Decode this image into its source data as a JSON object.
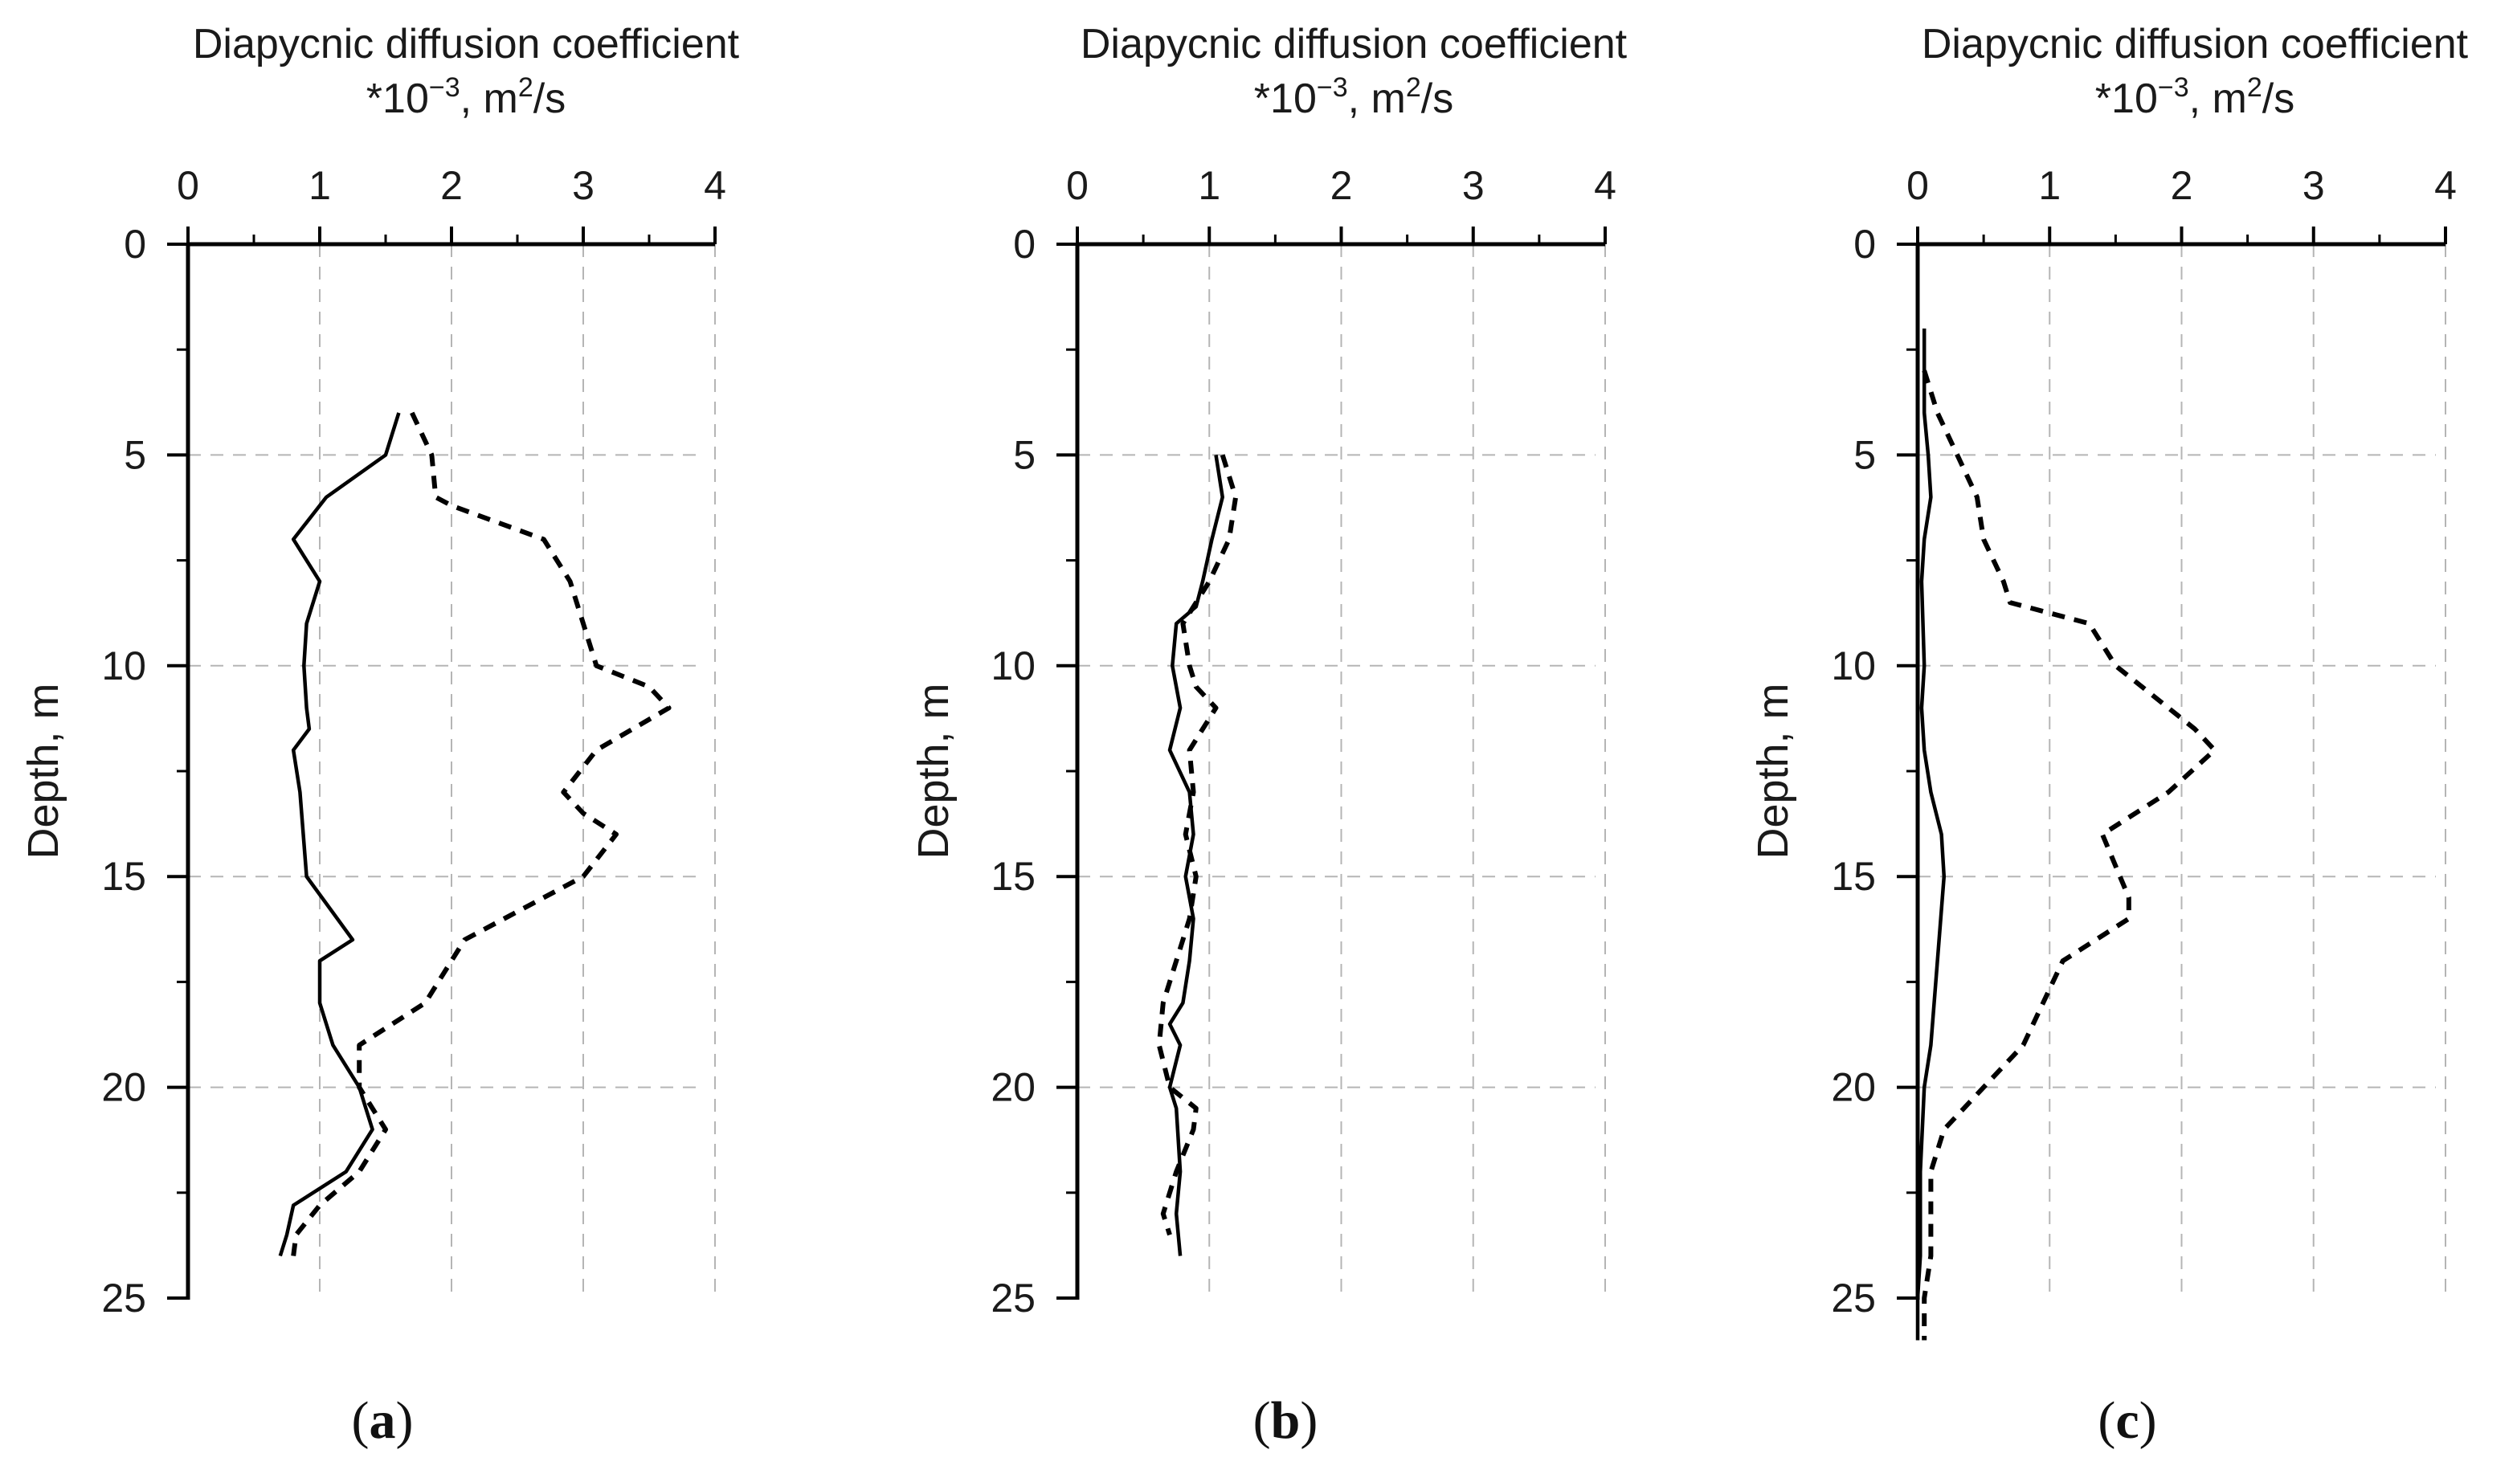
{
  "figure": {
    "panel_labels": [
      {
        "open": "(",
        "letter": "a",
        "close": ")"
      },
      {
        "open": "(",
        "letter": "b",
        "close": ")"
      },
      {
        "open": "(",
        "letter": "c",
        "close": ")"
      }
    ]
  },
  "chart_data": [
    {
      "type": "line",
      "title": "Diapycnic diffusion coefficient",
      "xlabel": "*10⁻³, m²/s",
      "xlabel_parts": {
        "prefix": "*10",
        "exp": "−3",
        "mid": ", m",
        "exp2": "2",
        "suffix": "/s"
      },
      "ylabel": "Depth, m",
      "xlim": [
        0,
        4
      ],
      "ylim": [
        25,
        0
      ],
      "xticks": [
        "0",
        "1",
        "2",
        "3",
        "4"
      ],
      "yticks": [
        "0",
        "5",
        "10",
        "15",
        "20",
        "25"
      ],
      "grid": true,
      "series": [
        {
          "name": "solid",
          "style": "solid",
          "x": [
            1.6,
            1.5,
            1.05,
            0.85,
            0.8,
            1.0,
            0.9,
            0.88,
            0.9,
            0.92,
            0.8,
            0.85,
            0.9,
            1.25,
            1.0,
            1.0,
            1.1,
            1.3,
            1.4,
            1.2,
            0.8,
            0.75,
            0.7
          ],
          "y": [
            4,
            5,
            6,
            6.8,
            7,
            8,
            9,
            10,
            11,
            11.5,
            12,
            13,
            15,
            16.5,
            17,
            18,
            19,
            20,
            21,
            22,
            22.8,
            23.5,
            24
          ]
        },
        {
          "name": "dashed",
          "style": "dashed",
          "x": [
            1.7,
            1.85,
            1.88,
            2.0,
            2.7,
            2.9,
            3.0,
            3.1,
            3.5,
            3.65,
            3.1,
            2.85,
            3.0,
            3.25,
            3.0,
            2.1,
            1.8,
            1.3,
            1.3,
            1.5,
            1.3,
            1.0,
            0.82,
            0.8
          ],
          "y": [
            4,
            5,
            6,
            6.2,
            7,
            8,
            9,
            10,
            10.5,
            11,
            12,
            13,
            13.5,
            14,
            15,
            16.5,
            18,
            19,
            20,
            21,
            22,
            22.8,
            23.5,
            24
          ]
        }
      ]
    },
    {
      "type": "line",
      "title": "Diapycnic diffusion coefficient",
      "xlabel": "*10⁻³, m²/s",
      "xlabel_parts": {
        "prefix": "*10",
        "exp": "−3",
        "mid": ", m",
        "exp2": "2",
        "suffix": "/s"
      },
      "ylabel": "Depth, m",
      "xlim": [
        0,
        4
      ],
      "ylim": [
        25,
        0
      ],
      "xticks": [
        "0",
        "1",
        "2",
        "3",
        "4"
      ],
      "yticks": [
        "0",
        "5",
        "10",
        "15",
        "20",
        "25"
      ],
      "grid": true,
      "series": [
        {
          "name": "solid",
          "style": "solid",
          "x": [
            1.05,
            1.1,
            1.02,
            0.95,
            0.9,
            0.75,
            0.72,
            0.78,
            0.7,
            0.85,
            0.88,
            0.82,
            0.88,
            0.85,
            0.8,
            0.7,
            0.78,
            0.7,
            0.75,
            0.78,
            0.75,
            0.78
          ],
          "y": [
            5,
            6,
            7,
            8,
            8.6,
            9,
            10,
            11,
            12,
            13,
            14,
            15,
            16,
            17,
            18,
            18.5,
            19,
            20,
            20.5,
            22,
            23,
            24
          ]
        },
        {
          "name": "dashed",
          "style": "dashed",
          "x": [
            1.1,
            1.2,
            1.15,
            1.0,
            0.8,
            0.85,
            0.9,
            1.05,
            0.85,
            0.88,
            0.82,
            0.9,
            0.85,
            0.7,
            0.65,
            0.62,
            0.7,
            0.9,
            0.88,
            0.75,
            0.65,
            0.7
          ],
          "y": [
            5,
            6,
            7,
            8,
            9,
            10,
            10.5,
            11,
            12,
            13,
            14,
            15,
            16,
            17.5,
            18,
            19,
            20,
            20.5,
            21,
            22,
            23,
            23.5
          ]
        }
      ]
    },
    {
      "type": "line",
      "title": "Diapycnic diffusion coefficient",
      "xlabel": "*10⁻³, m²/s",
      "xlabel_parts": {
        "prefix": "*10",
        "exp": "−3",
        "mid": ", m",
        "exp2": "2",
        "suffix": "/s"
      },
      "ylabel": "Depth, m",
      "xlim": [
        0,
        4
      ],
      "ylim": [
        25,
        0
      ],
      "xticks": [
        "0",
        "1",
        "2",
        "3",
        "4"
      ],
      "yticks": [
        "0",
        "5",
        "10",
        "15",
        "20",
        "25"
      ],
      "grid": true,
      "series": [
        {
          "name": "solid",
          "style": "solid",
          "x": [
            0.05,
            0.05,
            0.08,
            0.1,
            0.05,
            0.03,
            0.05,
            0.03,
            0.05,
            0.1,
            0.18,
            0.2,
            0.15,
            0.1,
            0.05,
            0.02,
            0.02,
            0.0,
            0.0
          ],
          "y": [
            2,
            4,
            5,
            6,
            7,
            8,
            10,
            11,
            12,
            13,
            14,
            15,
            17,
            19,
            20,
            22,
            24,
            25,
            26
          ]
        },
        {
          "name": "dashed",
          "style": "dashed",
          "x": [
            0.05,
            0.15,
            0.3,
            0.45,
            0.5,
            0.65,
            0.7,
            1.3,
            1.5,
            2.1,
            2.25,
            1.9,
            1.4,
            1.6,
            1.6,
            1.1,
            0.8,
            0.2,
            0.1,
            0.1,
            0.05,
            0.05
          ],
          "y": [
            3,
            4,
            5,
            6,
            7,
            8,
            8.5,
            9,
            10,
            11.5,
            12,
            13,
            14,
            15.5,
            16,
            17,
            19,
            21,
            22,
            24,
            25,
            26
          ]
        }
      ]
    }
  ]
}
